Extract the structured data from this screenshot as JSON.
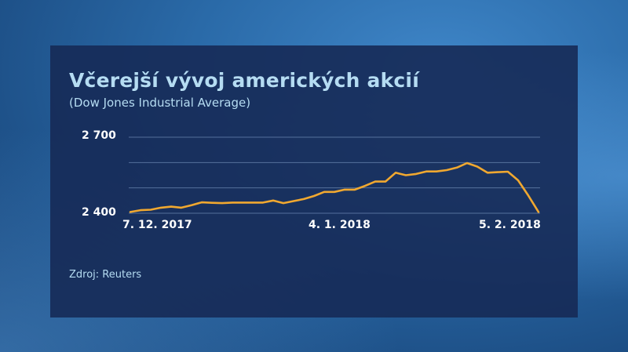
{
  "chart_data": {
    "type": "line",
    "title": "Včerejší vývoj amerických akcií",
    "subtitle": "(Dow Jones Industrial Average)",
    "xlabel": "",
    "ylabel": "",
    "ylim": [
      2400,
      2700
    ],
    "yticks": [
      "2 700",
      "2 400"
    ],
    "gridlines": [
      2400,
      2500,
      2600,
      2700
    ],
    "xtick_labels": [
      "7. 12. 2017",
      "4. 1. 2018",
      "5. 2. 2018"
    ],
    "grid": true,
    "legend": "none",
    "line_color": "#f0a830",
    "series": [
      {
        "name": "Dow Jones Industrial Average",
        "values": [
          2405,
          2412,
          2414,
          2422,
          2426,
          2422,
          2432,
          2443,
          2441,
          2440,
          2442,
          2442,
          2442,
          2442,
          2450,
          2440,
          2448,
          2456,
          2468,
          2484,
          2484,
          2493,
          2493,
          2508,
          2525,
          2525,
          2560,
          2550,
          2555,
          2565,
          2565,
          2570,
          2580,
          2598,
          2584,
          2560,
          2562,
          2564,
          2530,
          2470,
          2405
        ]
      }
    ],
    "source": "Zdroj: Reuters"
  },
  "source": "Zdroj: Reuters"
}
